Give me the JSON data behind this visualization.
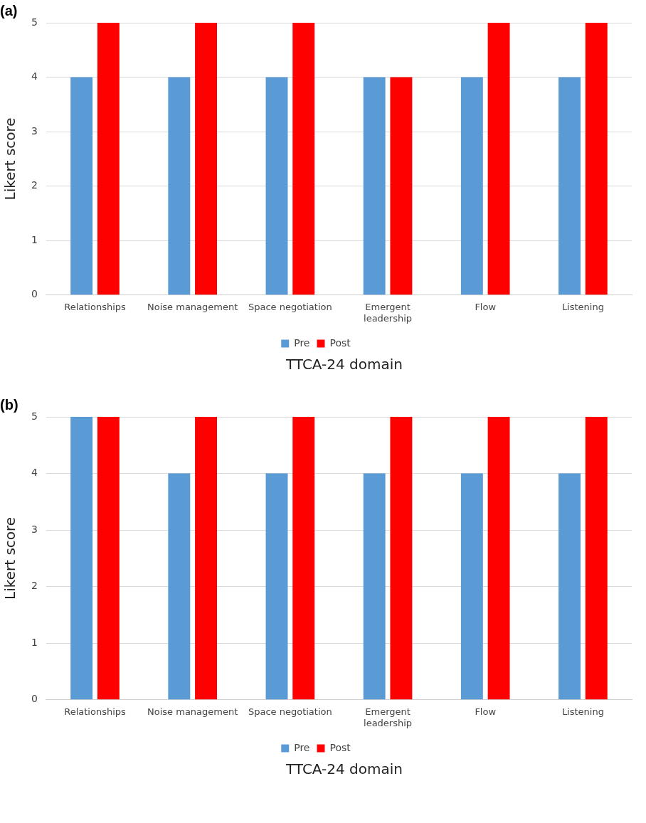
{
  "chart_data": [
    {
      "type": "bar",
      "title": "(a)",
      "xlabel": "TTCA-24 domain",
      "ylabel": "Likert score",
      "categories": [
        "Relationships",
        "Noise management",
        "Space negotiation",
        "Emergent leadership",
        "Flow",
        "Listening"
      ],
      "series": [
        {
          "name": "Pre",
          "color": "#5b9bd5",
          "values": [
            4,
            4,
            4,
            4,
            4,
            4
          ]
        },
        {
          "name": "Post",
          "color": "#ff0000",
          "values": [
            5,
            5,
            5,
            4,
            5,
            5
          ]
        }
      ],
      "ylim": [
        0,
        5
      ],
      "yticks": [
        0,
        1,
        2,
        3,
        4,
        5
      ],
      "grid": "y",
      "legend": "bottom"
    },
    {
      "type": "bar",
      "title": "(b)",
      "xlabel": "TTCA-24 domain",
      "ylabel": "Likert score",
      "categories": [
        "Relationships",
        "Noise management",
        "Space negotiation",
        "Emergent leadership",
        "Flow",
        "Listening"
      ],
      "series": [
        {
          "name": "Pre",
          "color": "#5b9bd5",
          "values": [
            5,
            4,
            4,
            4,
            4,
            4
          ]
        },
        {
          "name": "Post",
          "color": "#ff0000",
          "values": [
            5,
            5,
            5,
            5,
            5,
            5
          ]
        }
      ],
      "ylim": [
        0,
        5
      ],
      "yticks": [
        0,
        1,
        2,
        3,
        4,
        5
      ],
      "grid": "y",
      "legend": "bottom"
    }
  ]
}
